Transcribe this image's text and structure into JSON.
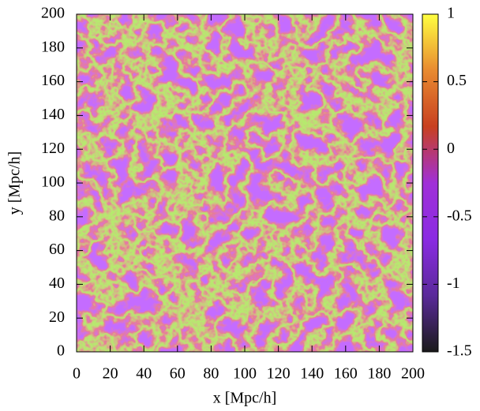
{
  "chart_data": {
    "type": "heatmap",
    "xlabel": "x [Mpc/h]",
    "ylabel": "y [Mpc/h]",
    "xlim": [
      0,
      200
    ],
    "ylim": [
      0,
      200
    ],
    "xticks": [
      0,
      20,
      40,
      60,
      80,
      100,
      120,
      140,
      160,
      180,
      200
    ],
    "yticks": [
      0,
      20,
      40,
      60,
      80,
      100,
      120,
      140,
      160,
      180,
      200
    ],
    "colorbar": {
      "lim": [
        -1.5,
        1
      ],
      "ticks": [
        -1.5,
        -1,
        -0.5,
        0,
        0.5,
        1
      ],
      "colors": [
        "#1a1a1a",
        "#5a2a9a",
        "#8a2be2",
        "#a030d8",
        "#c84020",
        "#e88a30",
        "#ffff40"
      ]
    }
  }
}
